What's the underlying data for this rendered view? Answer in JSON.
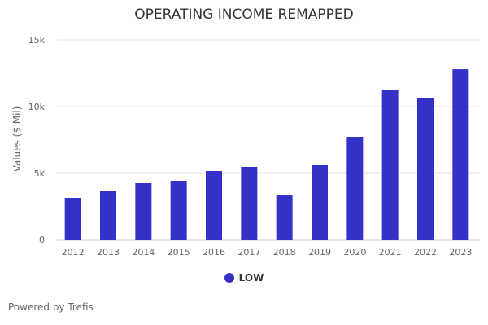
{
  "chart_data": {
    "type": "bar",
    "title": "OPERATING INCOME REMAPPED",
    "xlabel": "",
    "ylabel": "Values ($ Mil)",
    "categories": [
      "2012",
      "2013",
      "2014",
      "2015",
      "2016",
      "2017",
      "2018",
      "2019",
      "2020",
      "2021",
      "2022",
      "2023"
    ],
    "series": [
      {
        "name": "LOW",
        "values": [
          3110,
          3660,
          4270,
          4390,
          5180,
          5490,
          3350,
          5610,
          7740,
          11220,
          10610,
          12800
        ],
        "color": "#3431c9"
      }
    ],
    "ylim": [
      0,
      15000
    ],
    "yticks": [
      0,
      5000,
      10000,
      15000
    ],
    "ytick_labels": [
      "0",
      "5k",
      "10k",
      "15k"
    ],
    "grid": true,
    "legend_position": "bottom"
  },
  "footer": {
    "credit": "Powered by Trefis"
  }
}
